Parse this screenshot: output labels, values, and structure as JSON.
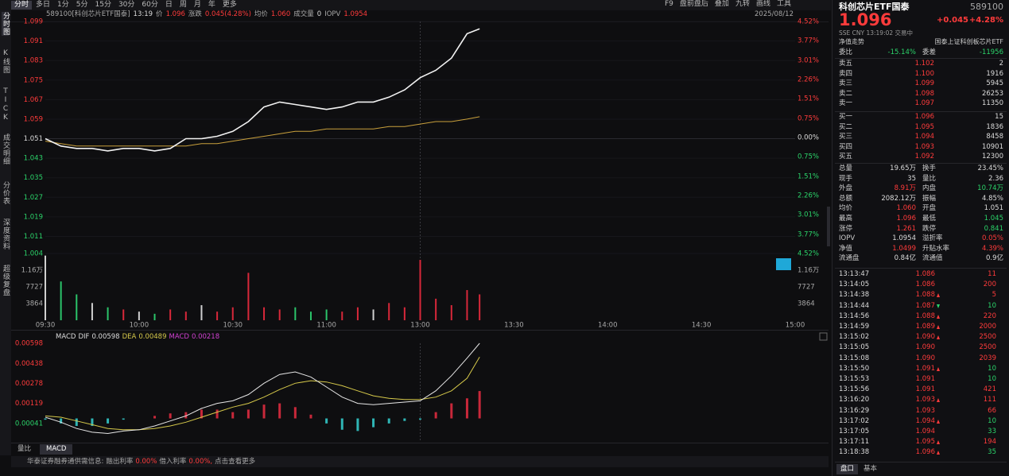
{
  "toolbar": {
    "tabs": [
      "分时",
      "多日",
      "1分",
      "5分",
      "15分",
      "30分",
      "60分",
      "日",
      "周",
      "月",
      "年",
      "更多"
    ],
    "tools": [
      "F9",
      "盘前盘后",
      "叠加",
      "九转",
      "画线",
      "工具"
    ]
  },
  "sidebar": [
    "分时图",
    "K线图",
    "TICK",
    "成交明细",
    "分价表",
    "深度资料",
    "超级复盘"
  ],
  "info": {
    "code_name": "589100[科创芯片ETF国泰]",
    "time": "13:19",
    "price_label": "价",
    "price": "1.096",
    "change_label": "涨跌",
    "change": "0.045(4.28%)",
    "avg_label": "均价",
    "avg": "1.060",
    "volume_label": "成交量",
    "volume": "0",
    "iopv_label": "IOPV",
    "iopv": "1.0954",
    "date": "2025/08/12"
  },
  "price_chart": {
    "xlim": [
      0,
      240
    ],
    "xticks": [
      {
        "value": 0,
        "label": "09:30"
      },
      {
        "value": 30,
        "label": "10:00"
      },
      {
        "value": 60,
        "label": "10:30"
      },
      {
        "value": 90,
        "label": "11:00"
      },
      {
        "value": 120,
        "label": "13:00"
      },
      {
        "value": 150,
        "label": "13:30"
      },
      {
        "value": 180,
        "label": "14:00"
      },
      {
        "value": 210,
        "label": "14:30"
      },
      {
        "value": 240,
        "label": "15:00"
      }
    ],
    "ylim": [
      1.004,
      1.099
    ],
    "yticks": [
      1.099,
      1.091,
      1.083,
      1.075,
      1.067,
      1.059,
      1.051,
      1.043,
      1.035,
      1.027,
      1.019,
      1.011,
      1.004
    ],
    "y2lim": [
      -4.52,
      4.52
    ],
    "y2ticks": [
      {
        "value": 4.52,
        "label": "4.52%"
      },
      {
        "value": 3.77,
        "label": "3.77%"
      },
      {
        "value": 3.01,
        "label": "3.01%"
      },
      {
        "value": 2.26,
        "label": "2.26%"
      },
      {
        "value": 1.51,
        "label": "1.51%"
      },
      {
        "value": 0.75,
        "label": "0.75%"
      },
      {
        "value": 0,
        "label": "0.00%"
      },
      {
        "value": -0.75,
        "label": "0.75%"
      },
      {
        "value": -1.51,
        "label": "1.51%"
      },
      {
        "value": -2.26,
        "label": "2.26%"
      },
      {
        "value": -3.01,
        "label": "3.01%"
      },
      {
        "value": -3.77,
        "label": "3.77%"
      },
      {
        "value": -4.52,
        "label": "4.52%"
      }
    ],
    "grid": true,
    "minutes": [
      0,
      5,
      10,
      15,
      20,
      25,
      30,
      35,
      40,
      45,
      50,
      55,
      60,
      65,
      70,
      75,
      80,
      85,
      90,
      95,
      100,
      105,
      110,
      115,
      120,
      125,
      130,
      135,
      139
    ],
    "price": [
      1.051,
      1.048,
      1.047,
      1.047,
      1.046,
      1.047,
      1.047,
      1.046,
      1.047,
      1.051,
      1.051,
      1.052,
      1.054,
      1.058,
      1.064,
      1.066,
      1.065,
      1.064,
      1.063,
      1.064,
      1.066,
      1.066,
      1.068,
      1.071,
      1.076,
      1.079,
      1.084,
      1.094,
      1.096
    ],
    "avg": [
      1.05,
      1.049,
      1.048,
      1.048,
      1.048,
      1.048,
      1.048,
      1.048,
      1.048,
      1.048,
      1.049,
      1.049,
      1.05,
      1.051,
      1.052,
      1.053,
      1.054,
      1.054,
      1.055,
      1.055,
      1.055,
      1.055,
      1.056,
      1.056,
      1.057,
      1.058,
      1.058,
      1.059,
      1.06
    ],
    "price_color": "#f2f2f2",
    "avg_color": "#c9a03c"
  },
  "volume_chart": {
    "ylim": [
      0,
      15300
    ],
    "yticks": [
      {
        "value": 11600,
        "label": "1.16万"
      },
      7727,
      3864
    ],
    "values": [
      15000,
      9000,
      6000,
      4000,
      3000,
      2500,
      2000,
      1500,
      2500,
      2000,
      3500,
      2000,
      3000,
      11000,
      3000,
      2500,
      3000,
      2000,
      2500,
      2000,
      3000,
      2500,
      4000,
      3000,
      14000,
      5000,
      3500,
      7000,
      6000
    ],
    "up_color": "#d8283a",
    "down_color": "#2bc46a",
    "flat_color": "#cfcfcf"
  },
  "macd": {
    "title": "MACD",
    "dif_label": "DIF",
    "dea_label": "DEA",
    "macd_label": "MACD",
    "ylim": [
      -0.0018,
      0.00598
    ],
    "yticks": [
      0.00598,
      0.00438,
      0.00278,
      0.00119,
      {
        "value": -0.00041,
        "label": "0.00041"
      }
    ],
    "dif": [
      0.0001,
      -0.0003,
      -0.0008,
      -0.0011,
      -0.0012,
      -0.001,
      -0.0009,
      -0.0006,
      -0.0002,
      0.0002,
      0.0008,
      0.0012,
      0.0014,
      0.0019,
      0.0028,
      0.0035,
      0.0037,
      0.0033,
      0.0025,
      0.0017,
      0.0012,
      0.0011,
      0.0012,
      0.0013,
      0.0014,
      0.0022,
      0.0034,
      0.0048,
      0.00598
    ],
    "dea": [
      0.0002,
      0.0001,
      -0.0002,
      -0.0005,
      -0.0008,
      -0.0009,
      -0.0009,
      -0.0008,
      -0.0006,
      -0.0003,
      0.0001,
      0.0005,
      0.0009,
      0.0012,
      0.0017,
      0.0023,
      0.0028,
      0.003,
      0.0029,
      0.0026,
      0.0022,
      0.0018,
      0.0016,
      0.0015,
      0.0015,
      0.0017,
      0.0022,
      0.0032,
      0.00489
    ],
    "hist": [
      -0.0001,
      -0.0004,
      -0.0006,
      -0.0006,
      -0.0004,
      -0.0001,
      0,
      0.0002,
      0.0004,
      0.0005,
      0.0007,
      0.0007,
      0.0005,
      0.0007,
      0.0011,
      0.0012,
      0.0009,
      0.0003,
      -0.0004,
      -0.0009,
      -0.001,
      -0.0007,
      -0.0004,
      -0.0002,
      -0.0001,
      0.0005,
      0.0012,
      0.0016,
      0.00218
    ],
    "dif_color": "#e6e6e6",
    "dea_color": "#d6c94a",
    "pos_color": "#c8283a",
    "neg_color": "#2fb5b5"
  },
  "bottom_tabs": [
    "量比",
    "MACD"
  ],
  "notice": {
    "source": "华泰证券融券通供需信息:",
    "rate_out_label": "融出利率",
    "rate_out": "0.00%",
    "rate_in_label": "借入利率",
    "rate_in": "0.00%,",
    "link": "点击查看更多"
  },
  "quote": {
    "name": "科创芯片ETF国泰",
    "code": "589100",
    "price": "1.096",
    "change": "+0.045",
    "pct": "+4.28%",
    "meta": "SSE  CNY  13:19:02  交易中",
    "nav_link": "净值走势",
    "index_name": "国泰上证科创板芯片ETF",
    "wb_label": "委比",
    "wb": "-15.14%",
    "wc_label": "委差",
    "wc": "-11956"
  },
  "order_book": {
    "sell": [
      {
        "label": "卖五",
        "price": "1.102",
        "vol": "2"
      },
      {
        "label": "卖四",
        "price": "1.100",
        "vol": "1916"
      },
      {
        "label": "卖三",
        "price": "1.099",
        "vol": "5945"
      },
      {
        "label": "卖二",
        "price": "1.098",
        "vol": "26253"
      },
      {
        "label": "卖一",
        "price": "1.097",
        "vol": "11350"
      }
    ],
    "buy": [
      {
        "label": "买一",
        "price": "1.096",
        "vol": "15"
      },
      {
        "label": "买二",
        "price": "1.095",
        "vol": "1836"
      },
      {
        "label": "买三",
        "price": "1.094",
        "vol": "8458"
      },
      {
        "label": "买四",
        "price": "1.093",
        "vol": "10901"
      },
      {
        "label": "买五",
        "price": "1.092",
        "vol": "12300"
      }
    ]
  },
  "stats": [
    [
      {
        "label": "总量",
        "value": "19.65万",
        "color": "white"
      },
      {
        "label": "换手",
        "value": "23.45%",
        "color": "white"
      }
    ],
    [
      {
        "label": "现手",
        "value": "35",
        "color": "white"
      },
      {
        "label": "量比",
        "value": "2.36",
        "color": "white"
      }
    ],
    [
      {
        "label": "外盘",
        "value": "8.91万",
        "color": "red"
      },
      {
        "label": "内盘",
        "value": "10.74万",
        "color": "green"
      }
    ],
    [
      {
        "label": "总额",
        "value": "2082.12万",
        "color": "white"
      },
      {
        "label": "振幅",
        "value": "4.85%",
        "color": "white"
      }
    ],
    [
      {
        "label": "均价",
        "value": "1.060",
        "color": "red"
      },
      {
        "label": "开盘",
        "value": "1.051",
        "color": "white"
      }
    ],
    [
      {
        "label": "最高",
        "value": "1.096",
        "color": "red"
      },
      {
        "label": "最低",
        "value": "1.045",
        "color": "green"
      }
    ],
    [
      {
        "label": "涨停",
        "value": "1.261",
        "color": "red"
      },
      {
        "label": "跌停",
        "value": "0.841",
        "color": "green"
      }
    ],
    [
      {
        "label": "IOPV",
        "value": "1.0954",
        "color": "white"
      },
      {
        "label": "溢折率",
        "value": "0.05%",
        "color": "red"
      }
    ],
    [
      {
        "label": "净值",
        "value": "1.0499",
        "color": "red"
      },
      {
        "label": "升贴水率",
        "value": "4.39%",
        "color": "red"
      }
    ],
    [
      {
        "label": "流通盘",
        "value": "0.84亿",
        "color": "white"
      },
      {
        "label": "流通值",
        "value": "0.9亿",
        "color": "white"
      }
    ]
  ],
  "ticks": [
    {
      "time": "13:13:47",
      "price": "1.086",
      "vol": "11",
      "side": "buy"
    },
    {
      "time": "13:14:05",
      "price": "1.086",
      "vol": "200",
      "side": "buy"
    },
    {
      "time": "13:14:38",
      "price": "1.088",
      "vol": "5",
      "side": "buy",
      "dir": "up"
    },
    {
      "time": "13:14:44",
      "price": "1.087",
      "vol": "10",
      "side": "sell",
      "dir": "down"
    },
    {
      "time": "13:14:56",
      "price": "1.088",
      "vol": "220",
      "side": "buy",
      "dir": "up"
    },
    {
      "time": "13:14:59",
      "price": "1.089",
      "vol": "2000",
      "side": "buy",
      "dir": "up"
    },
    {
      "time": "13:15:02",
      "price": "1.090",
      "vol": "2500",
      "side": "buy",
      "dir": "up"
    },
    {
      "time": "13:15:05",
      "price": "1.090",
      "vol": "2500",
      "side": "buy"
    },
    {
      "time": "13:15:08",
      "price": "1.090",
      "vol": "2039",
      "side": "buy"
    },
    {
      "time": "13:15:50",
      "price": "1.091",
      "vol": "10",
      "side": "sell",
      "dir": "up"
    },
    {
      "time": "13:15:53",
      "price": "1.091",
      "vol": "10",
      "side": "sell"
    },
    {
      "time": "13:15:56",
      "price": "1.091",
      "vol": "421",
      "side": "buy"
    },
    {
      "time": "13:16:20",
      "price": "1.093",
      "vol": "111",
      "side": "buy",
      "dir": "up"
    },
    {
      "time": "13:16:29",
      "price": "1.093",
      "vol": "66",
      "side": "buy"
    },
    {
      "time": "13:17:02",
      "price": "1.094",
      "vol": "10",
      "side": "sell",
      "dir": "up"
    },
    {
      "time": "13:17:05",
      "price": "1.094",
      "vol": "33",
      "side": "sell"
    },
    {
      "time": "13:17:11",
      "price": "1.095",
      "vol": "194",
      "side": "buy",
      "dir": "up"
    },
    {
      "time": "13:18:38",
      "price": "1.096",
      "vol": "35",
      "side": "sell",
      "dir": "up"
    }
  ],
  "panel_tabs": [
    "盘口",
    "基本"
  ]
}
